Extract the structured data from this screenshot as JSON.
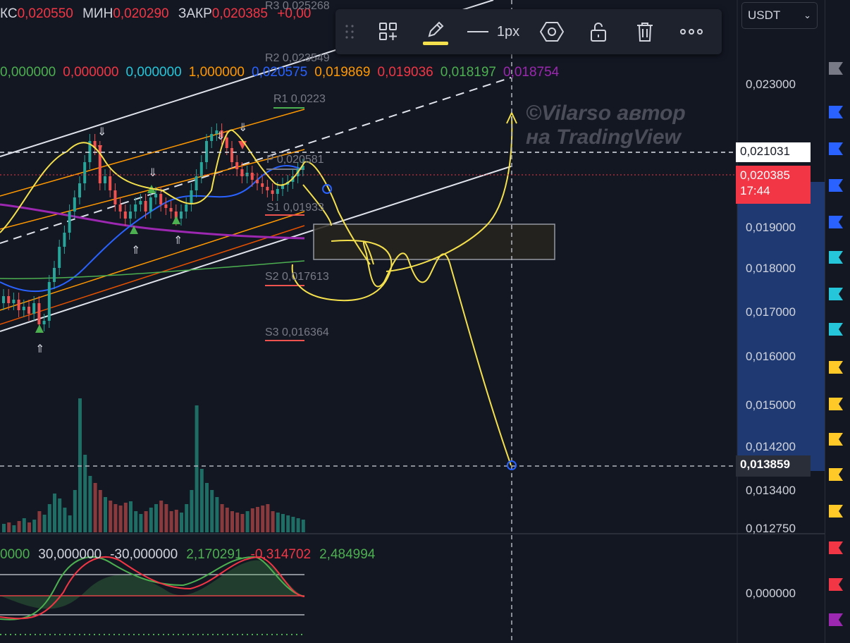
{
  "ohlc": {
    "open_label": "КС",
    "open_value": "0,020550",
    "low_label": "МИН",
    "low_value": "0,020290",
    "close_label": "ЗАКР",
    "close_value": "0,020385",
    "change_value": "+0,00"
  },
  "indicator_values": [
    {
      "text": "0,000000",
      "color": "#4caf50"
    },
    {
      "text": "0,000000",
      "color": "#f23645"
    },
    {
      "text": "0,000000",
      "color": "#26c6da"
    },
    {
      "text": "1,000000",
      "color": "#ff9800"
    },
    {
      "text": "0,020575",
      "color": "#2962ff"
    },
    {
      "text": "0,019869",
      "color": "#ff9800"
    },
    {
      "text": "0,019036",
      "color": "#f23645"
    },
    {
      "text": "0,018197",
      "color": "#4caf50"
    },
    {
      "text": "0,018754",
      "color": "#9c27b0"
    }
  ],
  "oscillator_values": [
    {
      "text": "0000",
      "color": "#4caf50"
    },
    {
      "text": "30,000000",
      "color": "#d1d4dc"
    },
    {
      "text": "-30,000000",
      "color": "#d1d4dc"
    },
    {
      "text": "2,170291",
      "color": "#4caf50"
    },
    {
      "text": "-0,314702",
      "color": "#f23645"
    },
    {
      "text": "2,484994",
      "color": "#4caf50"
    }
  ],
  "toolbar": {
    "line_width_label": "1px",
    "icons": [
      "drag-handle-icon",
      "object-tree-icon",
      "pencil-icon",
      "line-style-icon",
      "settings-hexagon-icon",
      "unlock-icon",
      "trash-icon",
      "more-icon"
    ],
    "pencil_color": "#f4e04d"
  },
  "currency_selector": {
    "value": "USDT"
  },
  "price_axis": {
    "labels": [
      "0,023000",
      "0,019000",
      "0,018000",
      "0,017000",
      "0,016000",
      "0,015000",
      "0,014200",
      "0,013400",
      "0,012750",
      "0,000000"
    ],
    "marker_price": "0,021031",
    "current_price": "0,020385",
    "countdown": "17:44",
    "target_price": "0,013859"
  },
  "pivots": [
    {
      "label": "R3",
      "value": "0,025268"
    },
    {
      "label": "R2",
      "value": "0,023549"
    },
    {
      "label": "R1",
      "value": "0,0223"
    },
    {
      "label": "P",
      "value": "0,020581"
    },
    {
      "label": "S1",
      "value": "0,01933"
    },
    {
      "label": "S2",
      "value": "0,017613"
    },
    {
      "label": "S3",
      "value": "0,016364"
    }
  ],
  "watermark": {
    "line1": "©Vilarso автор",
    "line2": "на TradingView"
  },
  "colors": {
    "background": "#131722",
    "up": "#26a69a",
    "down": "#ef5350",
    "drawing": "#f4e04d",
    "price_tag": "#f23645",
    "axis_highlight": "#1f3a73"
  }
}
